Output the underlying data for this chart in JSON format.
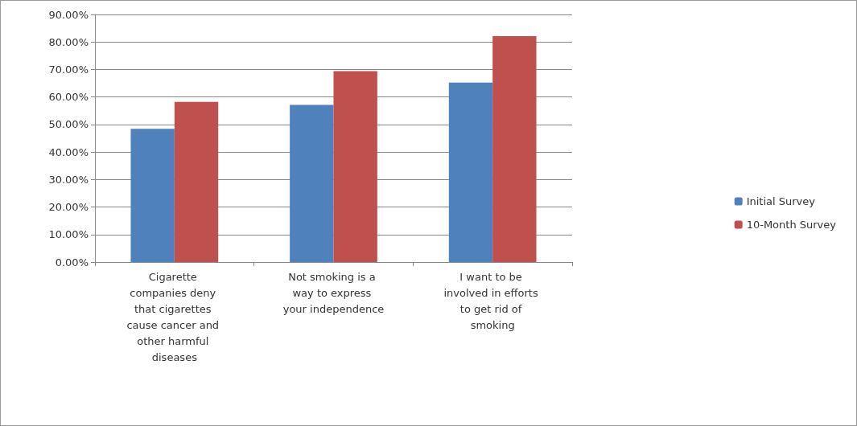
{
  "chart_data": {
    "type": "bar",
    "categories": [
      "Cigarette companies deny that cigarettes cause cancer and other harmful diseases",
      "Not smoking is a way to express your independence",
      "I want to be involved in efforts to get rid of smoking"
    ],
    "series": [
      {
        "name": "Initial Survey",
        "color": "#4f81bd",
        "values": [
          48.4,
          57.1,
          65.2
        ]
      },
      {
        "name": "10-Month Survey",
        "color": "#c0504d",
        "values": [
          58.2,
          69.4,
          82.1
        ]
      }
    ],
    "ylim": [
      0,
      90
    ],
    "yticks": [
      {
        "value": 0,
        "label": "0.00%"
      },
      {
        "value": 10,
        "label": "10.00%"
      },
      {
        "value": 20,
        "label": "20.00%"
      },
      {
        "value": 30,
        "label": "30.00%"
      },
      {
        "value": 40,
        "label": "40.00%"
      },
      {
        "value": 50,
        "label": "50.00%"
      },
      {
        "value": 60,
        "label": "60.00%"
      },
      {
        "value": 70,
        "label": "70.00%"
      },
      {
        "value": 80,
        "label": "80.00%"
      },
      {
        "value": 90,
        "label": "90.00%"
      }
    ],
    "grid": "y",
    "legend": "right"
  }
}
